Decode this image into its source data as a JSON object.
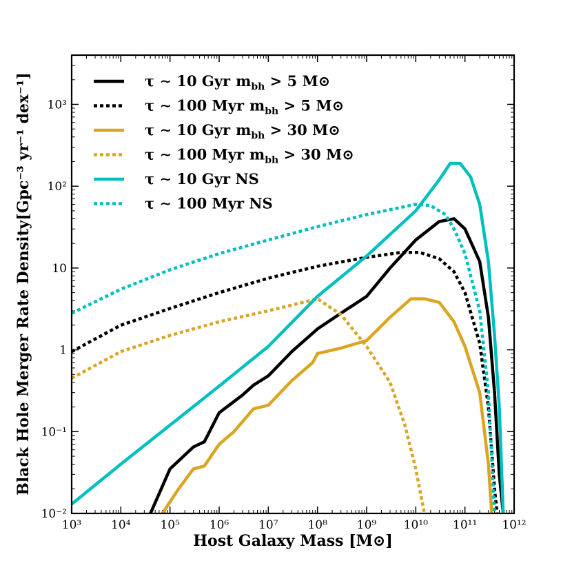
{
  "chart_data": {
    "type": "line",
    "xlabel": "Host Galaxy Mass [M⊙]",
    "ylabel": "Black Hole Merger Rate Density[Gpc⁻³ yr⁻¹ dex⁻¹]",
    "xscale": "log",
    "yscale": "log",
    "xlim": [
      1000.0,
      1000000000000.0
    ],
    "ylim": [
      0.01,
      4000
    ],
    "grid": false,
    "legend_position": "top-left",
    "x_ticks": [
      {
        "value": 1000.0,
        "label": "10³"
      },
      {
        "value": 10000.0,
        "label": "10⁴"
      },
      {
        "value": 100000.0,
        "label": "10⁵"
      },
      {
        "value": 1000000.0,
        "label": "10⁶"
      },
      {
        "value": 10000000.0,
        "label": "10⁷"
      },
      {
        "value": 100000000.0,
        "label": "10⁸"
      },
      {
        "value": 1000000000.0,
        "label": "10⁹"
      },
      {
        "value": 10000000000.0,
        "label": "10¹⁰"
      },
      {
        "value": 100000000000.0,
        "label": "10¹¹"
      },
      {
        "value": 1000000000000.0,
        "label": "10¹²"
      }
    ],
    "y_ticks": [
      {
        "value": 0.01,
        "label": "10⁻²"
      },
      {
        "value": 0.1,
        "label": "10⁻¹"
      },
      {
        "value": 1,
        "label": "1"
      },
      {
        "value": 10,
        "label": "10"
      },
      {
        "value": 100,
        "label": "10²"
      },
      {
        "value": 1000,
        "label": "10³"
      }
    ],
    "series": [
      {
        "name": "τ ∼ 10 Gyr m_bh > 5 M⊙",
        "label": "τ ∼ 10 Gyr",
        "sub": "m",
        "subscript": "bh",
        "suffix": " > 5 M⊙",
        "color": "#000000",
        "style": "solid",
        "points": [
          [
            40000.0,
            0.01
          ],
          [
            100000.0,
            0.035
          ],
          [
            300000.0,
            0.065
          ],
          [
            500000.0,
            0.075
          ],
          [
            1000000.0,
            0.17
          ],
          [
            3000000.0,
            0.28
          ],
          [
            5000000.0,
            0.37
          ],
          [
            10000000.0,
            0.48
          ],
          [
            30000000.0,
            0.95
          ],
          [
            100000000.0,
            1.8
          ],
          [
            300000000.0,
            2.8
          ],
          [
            1000000000.0,
            4.5
          ],
          [
            3000000000.0,
            10
          ],
          [
            10000000000.0,
            22
          ],
          [
            30000000000.0,
            37
          ],
          [
            60000000000.0,
            40
          ],
          [
            100000000000.0,
            30
          ],
          [
            200000000000.0,
            12
          ],
          [
            300000000000.0,
            2.5
          ],
          [
            400000000000.0,
            0.3
          ],
          [
            500000000000.0,
            0.03
          ],
          [
            600000000000.0,
            0.01
          ]
        ]
      },
      {
        "name": "τ ∼ 100 Myr m_bh > 5 M⊙",
        "label": "τ ∼ 100 Myr",
        "sub": "m",
        "subscript": "bh",
        "suffix": " > 5 M⊙",
        "color": "#000000",
        "style": "dotted",
        "points": [
          [
            1000.0,
            0.95
          ],
          [
            10000.0,
            2.0
          ],
          [
            100000.0,
            3.2
          ],
          [
            1000000.0,
            5.0
          ],
          [
            10000000.0,
            7.5
          ],
          [
            100000000.0,
            10.5
          ],
          [
            1000000000.0,
            13.5
          ],
          [
            5000000000.0,
            15.5
          ],
          [
            12000000000.0,
            15.5
          ],
          [
            30000000000.0,
            13
          ],
          [
            60000000000.0,
            9
          ],
          [
            100000000000.0,
            5
          ],
          [
            200000000000.0,
            1.2
          ],
          [
            300000000000.0,
            0.2
          ],
          [
            400000000000.0,
            0.02
          ],
          [
            450000000000.0,
            0.01
          ]
        ]
      },
      {
        "name": "τ ∼ 10 Gyr m_bh > 30 M⊙",
        "label": "τ ∼ 10 Gyr",
        "sub": "m",
        "subscript": "bh",
        "suffix": " > 30 M⊙",
        "color": "#DAA520",
        "style": "solid",
        "points": [
          [
            70000.0,
            0.01
          ],
          [
            150000.0,
            0.02
          ],
          [
            300000.0,
            0.035
          ],
          [
            500000.0,
            0.038
          ],
          [
            1000000.0,
            0.07
          ],
          [
            2000000.0,
            0.1
          ],
          [
            5000000.0,
            0.19
          ],
          [
            10000000.0,
            0.21
          ],
          [
            30000000.0,
            0.42
          ],
          [
            80000000.0,
            0.7
          ],
          [
            100000000.0,
            0.9
          ],
          [
            300000000.0,
            1.05
          ],
          [
            1000000000.0,
            1.3
          ],
          [
            3000000000.0,
            2.5
          ],
          [
            8000000000.0,
            4.2
          ],
          [
            15000000000.0,
            4.2
          ],
          [
            30000000000.0,
            3.8
          ],
          [
            60000000000.0,
            2.2
          ],
          [
            100000000000.0,
            1.1
          ],
          [
            200000000000.0,
            0.3
          ],
          [
            300000000000.0,
            0.04
          ],
          [
            350000000000.0,
            0.01
          ]
        ]
      },
      {
        "name": "τ ∼ 100 Myr m_bh > 30 M⊙",
        "label": "τ ∼ 100 Myr",
        "sub": "m",
        "subscript": "bh",
        "suffix": " > 30 M⊙",
        "color": "#DAA520",
        "style": "dotted",
        "points": [
          [
            1000.0,
            0.45
          ],
          [
            10000.0,
            0.95
          ],
          [
            100000.0,
            1.5
          ],
          [
            1000000.0,
            2.2
          ],
          [
            10000000.0,
            3.0
          ],
          [
            50000000.0,
            3.8
          ],
          [
            100000000.0,
            4.2
          ],
          [
            300000000.0,
            2.7
          ],
          [
            1000000000.0,
            1.1
          ],
          [
            3000000000.0,
            0.4
          ],
          [
            6000000000.0,
            0.12
          ],
          [
            10000000000.0,
            0.035
          ],
          [
            15000000000.0,
            0.01
          ]
        ]
      },
      {
        "name": "τ ∼ 10 Gyr NS",
        "label": "τ ∼ 10 Gyr NS",
        "sub": "",
        "subscript": "",
        "suffix": "",
        "color": "#00BFBF",
        "style": "solid",
        "points": [
          [
            1000.0,
            0.013
          ],
          [
            10000.0,
            0.04
          ],
          [
            100000.0,
            0.12
          ],
          [
            1000000.0,
            0.36
          ],
          [
            10000000.0,
            1.1
          ],
          [
            100000000.0,
            4.5
          ],
          [
            1000000000.0,
            14
          ],
          [
            10000000000.0,
            50
          ],
          [
            30000000000.0,
            120
          ],
          [
            50000000000.0,
            190
          ],
          [
            80000000000.0,
            190
          ],
          [
            130000000000.0,
            130
          ],
          [
            200000000000.0,
            60
          ],
          [
            300000000000.0,
            12
          ],
          [
            400000000000.0,
            1.5
          ],
          [
            500000000000.0,
            0.2
          ],
          [
            600000000000.0,
            0.01
          ]
        ]
      },
      {
        "name": "τ ∼ 100 Myr NS",
        "label": "τ ∼ 100 Myr NS",
        "sub": "",
        "subscript": "",
        "suffix": "",
        "color": "#00BFBF",
        "style": "dotted",
        "points": [
          [
            1000.0,
            2.8
          ],
          [
            10000.0,
            5.5
          ],
          [
            100000.0,
            9.5
          ],
          [
            1000000.0,
            15
          ],
          [
            10000000.0,
            22
          ],
          [
            100000000.0,
            32
          ],
          [
            1000000000.0,
            45
          ],
          [
            10000000000.0,
            60
          ],
          [
            20000000000.0,
            58
          ],
          [
            40000000000.0,
            45
          ],
          [
            60000000000.0,
            30
          ],
          [
            100000000000.0,
            15
          ],
          [
            200000000000.0,
            3
          ],
          [
            300000000000.0,
            0.3
          ],
          [
            400000000000.0,
            0.01
          ]
        ]
      }
    ]
  }
}
